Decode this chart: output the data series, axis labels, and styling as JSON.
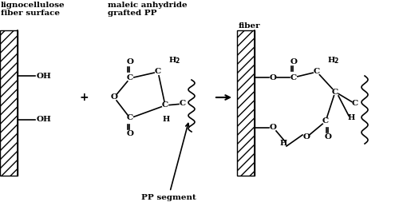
{
  "bg_color": "white",
  "fig_width": 5.15,
  "fig_height": 2.58,
  "dpi": 100,
  "labels": {
    "left_top1": "lignocellulose",
    "left_top2": "fiber surface",
    "ma_top1": "maleic anhydride",
    "ma_top2": "grafted PP",
    "fiber": "fiber",
    "pp_segment": "PP segment",
    "plus": "+",
    "arrow_right": "→"
  }
}
